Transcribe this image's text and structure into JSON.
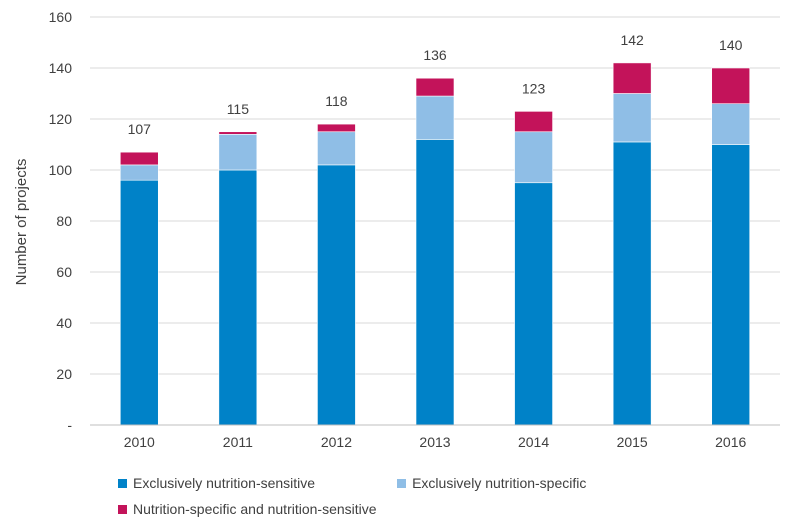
{
  "chart_data": {
    "type": "bar",
    "stacked": true,
    "title": "",
    "xlabel": "",
    "ylabel": "Number of projects",
    "ylim": [
      0,
      160
    ],
    "yticks": [
      0,
      20,
      40,
      60,
      80,
      100,
      120,
      140,
      160
    ],
    "ytick_labels": [
      "-",
      "20",
      "40",
      "60",
      "80",
      "100",
      "120",
      "140",
      "160"
    ],
    "grid": true,
    "legend_position": "bottom",
    "categories": [
      "2010",
      "2011",
      "2012",
      "2013",
      "2014",
      "2015",
      "2016"
    ],
    "series": [
      {
        "name": "Exclusively nutrition-sensitive",
        "color": "#0082C8",
        "values": [
          96,
          100,
          102,
          112,
          95,
          111,
          110
        ]
      },
      {
        "name": "Exclusively nutrition-specific",
        "color": "#8FBEE6",
        "values": [
          6,
          14,
          13,
          17,
          20,
          19,
          16
        ]
      },
      {
        "name": "Nutrition-specific and nutrition-sensitive",
        "color": "#C3135A",
        "values": [
          5,
          1,
          3,
          7,
          8,
          12,
          14
        ]
      }
    ],
    "totals": [
      107,
      115,
      118,
      136,
      123,
      142,
      140
    ]
  }
}
